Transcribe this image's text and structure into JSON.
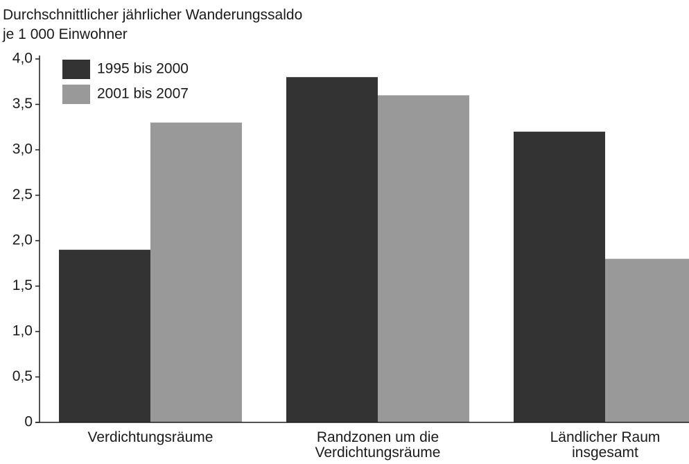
{
  "chart_data": {
    "type": "bar",
    "title": [
      "Durchschnittlicher jährlicher Wanderungssaldo",
      "je 1 000 Einwohner"
    ],
    "categories": [
      "Verdichtungsräume",
      "Randzonen um die Verdichtungsräume",
      "Ländlicher Raum insgesamt"
    ],
    "series": [
      {
        "name": "1995 bis 2000",
        "color": "#333333",
        "values": [
          1.9,
          3.8,
          3.2
        ]
      },
      {
        "name": "2001 bis 2007",
        "color": "#999999",
        "values": [
          3.3,
          3.6,
          1.8
        ]
      }
    ],
    "ylim": [
      0,
      4.0
    ],
    "yticks": [
      0,
      {
        "value": 0.5,
        "label": "0,5"
      },
      {
        "value": 1.0,
        "label": "1,0"
      },
      {
        "value": 1.5,
        "label": "1,5"
      },
      {
        "value": 2.0,
        "label": "2,0"
      },
      {
        "value": 2.5,
        "label": "2,5"
      },
      {
        "value": 3.0,
        "label": "3,0"
      },
      {
        "value": 3.5,
        "label": "3,5"
      },
      {
        "value": 4.0,
        "label": "4,0"
      }
    ],
    "legend": "top-left"
  }
}
